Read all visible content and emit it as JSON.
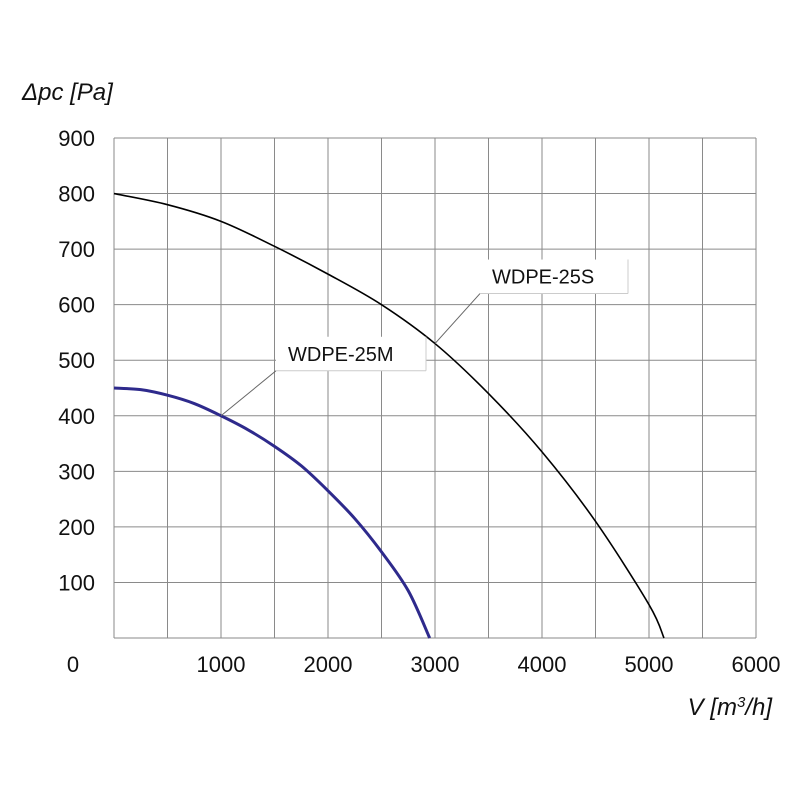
{
  "chart_data": {
    "type": "line",
    "xlabel": "V [m³/h]",
    "ylabel": "Δpc [Pa]",
    "xlim": [
      0,
      6000
    ],
    "ylim": [
      0,
      900
    ],
    "xticks": [
      1000,
      2000,
      3000,
      4000,
      5000,
      6000
    ],
    "yticks": [
      100,
      200,
      300,
      400,
      500,
      600,
      700,
      800,
      900
    ],
    "origin_label": "0",
    "x_grid_step": 500,
    "y_grid_step": 100,
    "grid": true,
    "series": [
      {
        "name": "WDPE-25S",
        "color": "#000000",
        "x": [
          0,
          500,
          1000,
          1500,
          2000,
          2500,
          3000,
          3500,
          4000,
          4500,
          5000,
          5140
        ],
        "y": [
          800,
          780,
          750,
          705,
          655,
          600,
          530,
          440,
          335,
          210,
          60,
          0
        ]
      },
      {
        "name": "WDPE-25M",
        "color": "#2e2a8c",
        "x": [
          0,
          250,
          500,
          750,
          1000,
          1250,
          1500,
          1750,
          2000,
          2250,
          2500,
          2750,
          2950
        ],
        "y": [
          450,
          447,
          437,
          422,
          400,
          375,
          345,
          310,
          265,
          215,
          155,
          85,
          0
        ]
      }
    ],
    "annotations": [
      {
        "text": "WDPE-25M",
        "series": "WDPE-25M",
        "x": 1000,
        "y": 400
      },
      {
        "text": "WDPE-25S",
        "series": "WDPE-25S",
        "x": 3000,
        "y": 530
      }
    ]
  }
}
